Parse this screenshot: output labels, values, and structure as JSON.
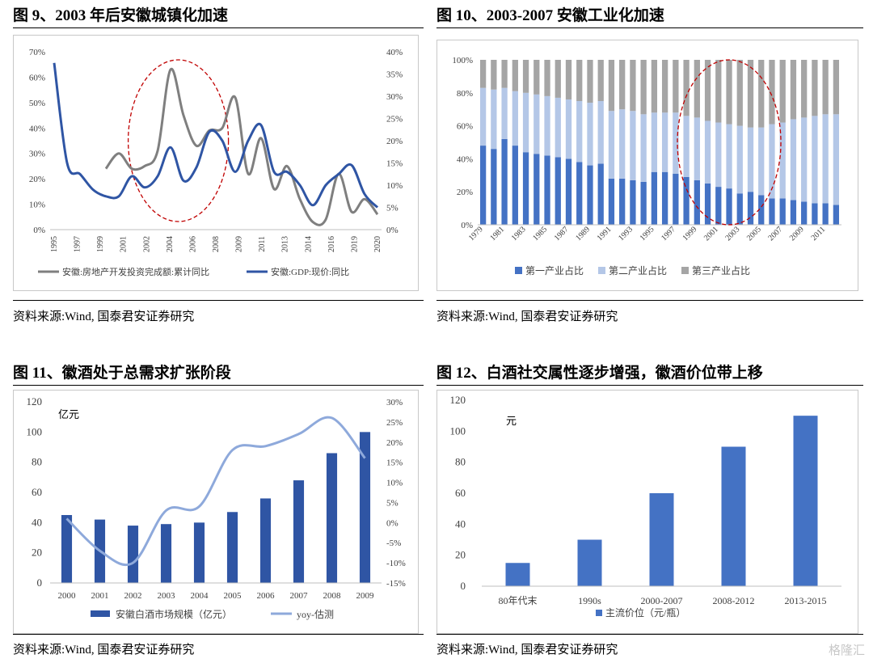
{
  "charts": [
    {
      "title": "图 9、2003 年后安徽城镇化加速",
      "source": "资料来源:Wind, 国泰君安证券研究"
    },
    {
      "title": "图 10、2003-2007 安徽工业化加速",
      "source": "资料来源:Wind, 国泰君安证券研究"
    },
    {
      "title": "图 11、徽酒处于总需求扩张阶段",
      "source": "资料来源:Wind, 国泰君安证券研究"
    },
    {
      "title": "图 12、白酒社交属性逐步增强，徽酒价位带上移",
      "source": "资料来源:Wind, 国泰君安证券研究"
    }
  ],
  "watermark": "格隆汇",
  "chart_data": [
    {
      "type": "line",
      "x": [
        "1995",
        "1996",
        "1997",
        "1998",
        "1999",
        "2000",
        "2001",
        "2002",
        "2003",
        "2004",
        "2005",
        "2006",
        "2007",
        "2008",
        "2009",
        "2010",
        "2011",
        "2012",
        "2013",
        "2014",
        "2015",
        "2016",
        "2017",
        "2018",
        "2019",
        "2020"
      ],
      "x_tick_labels": [
        "1995",
        "1997",
        "1999",
        "2001",
        "2002",
        "2004",
        "2006",
        "2008",
        "2009",
        "2011",
        "2013",
        "2014",
        "2016",
        "2019",
        "2020"
      ],
      "series": [
        {
          "name": "安徽:房地产开发投资完成额:累计同比",
          "axis": "left",
          "color": "#7f7f7f",
          "values": [
            null,
            null,
            null,
            null,
            24,
            30,
            24,
            25,
            31,
            63,
            45,
            33,
            39,
            40,
            52,
            22,
            36,
            16,
            25,
            12,
            3,
            4,
            22,
            7,
            12,
            6
          ]
        },
        {
          "name": "安徽:GDP:现价:同比",
          "axis": "right",
          "color": "#2f55a4",
          "values": [
            37.5,
            15,
            12.5,
            9,
            7.5,
            7.5,
            12,
            9.5,
            12,
            18.5,
            11,
            14,
            22,
            20,
            13,
            20,
            23.5,
            13,
            13,
            10,
            5.5,
            10,
            12.5,
            14.5,
            8,
            5
          ]
        }
      ],
      "yleft": {
        "min": 0,
        "max": 70,
        "step": 10,
        "suffix": "%"
      },
      "yright": {
        "min": 0,
        "max": 40,
        "step": 5,
        "suffix": "%"
      }
    },
    {
      "type": "stacked-bar",
      "x": [
        "1979",
        "1980",
        "1981",
        "1982",
        "1983",
        "1984",
        "1985",
        "1986",
        "1987",
        "1988",
        "1989",
        "1990",
        "1991",
        "1992",
        "1993",
        "1994",
        "1995",
        "1996",
        "1997",
        "1998",
        "1999",
        "2000",
        "2001",
        "2002",
        "2003",
        "2004",
        "2005",
        "2006",
        "2007",
        "2008",
        "2009",
        "2010",
        "2011",
        "2012"
      ],
      "x_tick_labels": [
        "1979",
        "1981",
        "1983",
        "1985",
        "1987",
        "1989",
        "1991",
        "1993",
        "1995",
        "1997",
        "1999",
        "2001",
        "2003",
        "2005",
        "2007",
        "2009",
        "2011"
      ],
      "series": [
        {
          "name": "第一产业占比",
          "color": "#4472c4",
          "values": [
            48,
            46,
            52,
            48,
            44,
            43,
            42,
            41,
            40,
            38,
            36,
            37,
            28,
            28,
            27,
            26,
            32,
            32,
            31,
            29,
            27,
            25,
            23,
            22,
            19,
            20,
            18,
            16,
            16,
            15,
            14,
            13,
            13,
            12
          ]
        },
        {
          "name": "第二产业占比",
          "color": "#b4c7e7",
          "values": [
            35,
            36,
            31,
            33,
            36,
            36,
            36,
            36,
            36,
            37,
            38,
            38,
            41,
            42,
            42,
            41,
            36,
            36,
            37,
            37,
            38,
            38,
            39,
            39,
            41,
            39,
            41,
            45,
            46,
            49,
            51,
            53,
            54,
            55
          ]
        },
        {
          "name": "第三产业占比",
          "color": "#a5a5a5",
          "values": [
            17,
            18,
            17,
            19,
            20,
            21,
            22,
            23,
            24,
            25,
            26,
            25,
            31,
            30,
            31,
            33,
            32,
            32,
            32,
            34,
            35,
            37,
            38,
            39,
            40,
            41,
            41,
            39,
            38,
            36,
            35,
            34,
            33,
            33
          ]
        }
      ],
      "yaxis": {
        "min": 0,
        "max": 100,
        "step": 20,
        "suffix": "%"
      }
    },
    {
      "type": "bar+line",
      "categories": [
        "2000",
        "2001",
        "2002",
        "2003",
        "2004",
        "2005",
        "2006",
        "2007",
        "2008",
        "2009"
      ],
      "unit_label": "亿元",
      "series": [
        {
          "name": "安徽白酒市场规模（亿元）",
          "type": "bar",
          "axis": "left",
          "color": "#2f55a4",
          "values": [
            45,
            42,
            38,
            39,
            40,
            47,
            56,
            68,
            86,
            100
          ]
        },
        {
          "name": "yoy-估测",
          "type": "line",
          "axis": "right",
          "color": "#8ea9db",
          "values": [
            1,
            -7,
            -10,
            3,
            4,
            18,
            19,
            22,
            26,
            16
          ]
        }
      ],
      "yleft": {
        "min": 0,
        "max": 120,
        "step": 20
      },
      "yright": {
        "min": -15,
        "max": 30,
        "step": 5,
        "suffix": "%"
      }
    },
    {
      "type": "bar",
      "categories": [
        "80年代末",
        "1990s",
        "2000-2007",
        "2008-2012",
        "2013-2015"
      ],
      "unit_label": "元",
      "series": [
        {
          "name": "主流价位（元/瓶）",
          "color": "#4472c4",
          "values": [
            15,
            30,
            60,
            90,
            110
          ]
        }
      ],
      "ylim": [
        0,
        120
      ],
      "ystep": 20
    }
  ]
}
